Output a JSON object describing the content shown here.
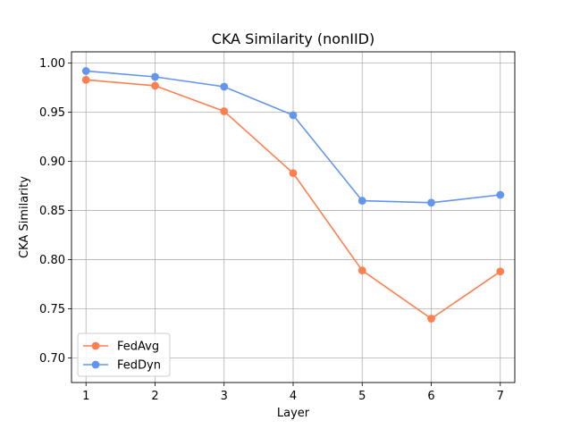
{
  "chart_data": {
    "type": "line",
    "title": "CKA Similarity (nonIID)",
    "xlabel": "Layer",
    "ylabel": "CKA Similarity",
    "x": [
      1,
      2,
      3,
      4,
      5,
      6,
      7
    ],
    "xlim": [
      0.79,
      7.21
    ],
    "ylim": [
      0.675,
      1.0115
    ],
    "xticks": [
      "1",
      "2",
      "3",
      "4",
      "5",
      "6",
      "7"
    ],
    "yticks": [
      "0.70",
      "0.75",
      "0.80",
      "0.85",
      "0.90",
      "0.95",
      "1.00"
    ],
    "grid": true,
    "legend_position": "lower-left",
    "series": [
      {
        "name": "FedAvg",
        "color": "#ff7f50",
        "values": [
          0.983,
          0.977,
          0.951,
          0.888,
          0.789,
          0.74,
          0.788
        ]
      },
      {
        "name": "FedDyn",
        "color": "#6495ed",
        "values": [
          0.992,
          0.986,
          0.976,
          0.947,
          0.86,
          0.858,
          0.866
        ]
      }
    ]
  }
}
